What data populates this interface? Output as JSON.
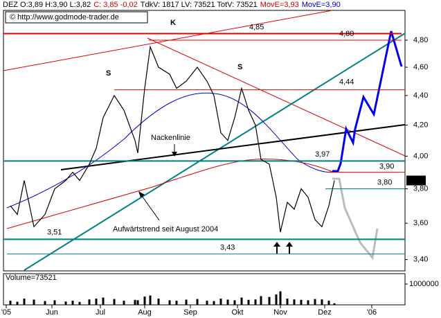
{
  "header": [
    {
      "text": "DEZ O:3,89 H:3,90 L:3,82",
      "color": "#000000"
    },
    {
      "text": "C: 3,85 -0,02",
      "color": "#d00000"
    },
    {
      "text": "TdkV: 1817 LV: 73521 TotV: 73521",
      "color": "#000000"
    },
    {
      "text": "MovE=3,93",
      "color": "#d00000"
    },
    {
      "text": "MovE=3,90",
      "color": "#0000cc"
    }
  ],
  "copyright": "© http://www.godmode-trader.de",
  "chart_data": [
    {
      "type": "line",
      "log": true,
      "color": "#000000",
      "x": [
        5,
        10,
        15,
        22,
        30,
        37,
        45,
        50,
        55,
        62,
        67,
        72,
        80,
        87,
        95,
        97,
        102,
        106,
        112,
        120,
        125,
        132,
        140,
        147,
        152,
        157,
        162,
        167,
        172,
        177,
        182,
        186,
        192,
        197,
        200,
        205,
        210,
        215,
        220,
        225,
        230,
        235,
        239
      ],
      "values": [
        3.7,
        3.65,
        3.85,
        3.58,
        3.65,
        3.8,
        3.85,
        3.9,
        3.85,
        3.95,
        4.05,
        4.25,
        4.4,
        4.3,
        4.1,
        4.02,
        4.45,
        4.75,
        4.6,
        4.55,
        4.45,
        4.5,
        4.6,
        4.5,
        4.4,
        4.15,
        4.1,
        4.25,
        4.45,
        4.3,
        4.2,
        3.98,
        3.95,
        3.75,
        3.55,
        3.72,
        3.68,
        3.8,
        3.75,
        3.62,
        3.58,
        3.7,
        3.85
      ],
      "xlim": [
        0,
        290
      ],
      "ylim": [
        3.34,
        5.03
      ],
      "xticks": [
        {
          "value": 2,
          "label": "'05"
        },
        {
          "value": 35,
          "label": "Jun"
        },
        {
          "value": 70,
          "label": "Jul"
        },
        {
          "value": 102,
          "label": "Aug"
        },
        {
          "value": 135,
          "label": "Sep"
        },
        {
          "value": 169,
          "label": "Okt"
        },
        {
          "value": 200,
          "label": "Nov"
        },
        {
          "value": 232,
          "label": "Dez"
        },
        {
          "value": 266,
          "label": "'06"
        }
      ],
      "yticks": [
        {
          "value": 4.8,
          "label": "4,80"
        },
        {
          "value": 4.6,
          "label": "4,60"
        },
        {
          "value": 4.4,
          "label": "4,40"
        },
        {
          "value": 4.2,
          "label": "4,20"
        },
        {
          "value": 4.0,
          "label": "4,00"
        },
        {
          "value": 3.8,
          "label": "3,80"
        },
        {
          "value": 3.6,
          "label": "3,60"
        },
        {
          "value": 3.4,
          "label": "3,40"
        }
      ],
      "levels": [
        {
          "value": 4.85,
          "label": "4,85",
          "color": "#e00000"
        },
        {
          "value": 4.8,
          "label": "4,80",
          "color": "#e00000"
        },
        {
          "value": 4.44,
          "label": "4,44",
          "color": "#e00000"
        },
        {
          "value": 3.97,
          "label": "3,97",
          "color": "#008080"
        },
        {
          "value": 3.9,
          "label": "3,90",
          "color": "#e00000"
        },
        {
          "value": 3.8,
          "label": "3,80",
          "color": "#008080"
        },
        {
          "value": 3.51,
          "label": "3,51",
          "color": "#008080"
        },
        {
          "value": 3.43,
          "label": "3,43",
          "color": "#008080"
        }
      ],
      "current_price": {
        "value": 3.85,
        "label": "3,85"
      },
      "annotations": [
        "K",
        "S",
        "S",
        "Nackenlinie",
        "Aufwärtstrend seit August 2004"
      ]
    },
    {
      "type": "bar",
      "title": "Volume=73521",
      "color": "#000000",
      "x": [
        5,
        10,
        15,
        22,
        30,
        37,
        45,
        50,
        55,
        62,
        67,
        72,
        80,
        87,
        95,
        97,
        102,
        106,
        112,
        120,
        125,
        132,
        140,
        147,
        152,
        157,
        162,
        167,
        172,
        177,
        182,
        186,
        192,
        197,
        200,
        205,
        210,
        215,
        220,
        225,
        230,
        235,
        239
      ],
      "values": [
        200000,
        150000,
        300000,
        250000,
        180000,
        220000,
        160000,
        200000,
        140000,
        260000,
        300000,
        350000,
        280000,
        200000,
        240000,
        220000,
        400000,
        450000,
        300000,
        220000,
        200000,
        250000,
        280000,
        200000,
        180000,
        300000,
        250000,
        220000,
        350000,
        240000,
        260000,
        420000,
        380000,
        500000,
        650000,
        300000,
        260000,
        240000,
        220000,
        280000,
        260000,
        200000,
        73521
      ],
      "xlim": [
        0,
        290
      ],
      "ylim": [
        0,
        1500000
      ],
      "yticks": [
        {
          "value": 1000000,
          "label": "1000000"
        }
      ]
    }
  ]
}
